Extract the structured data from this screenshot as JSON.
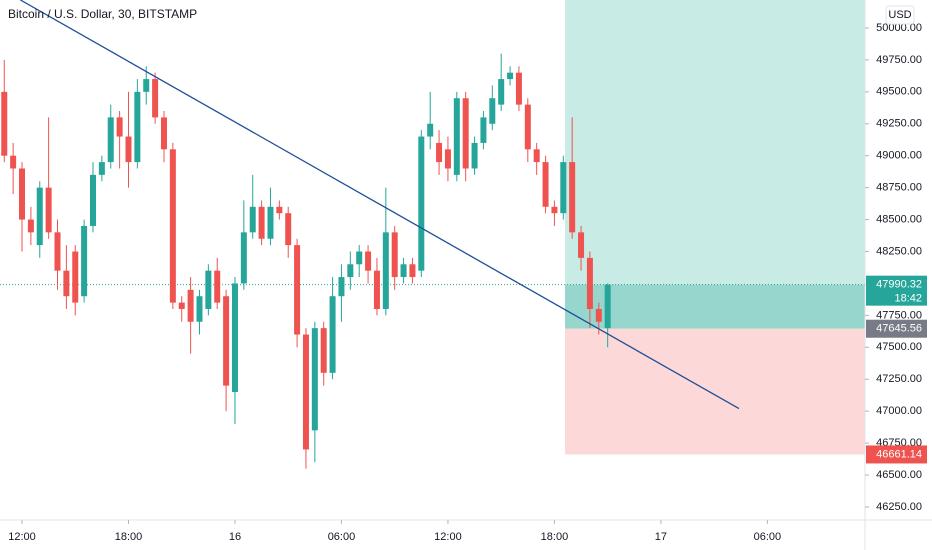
{
  "chart_data": {
    "type": "candlestick",
    "title": "Bitcoin / U.S. Dollar, 30, BITSTAMP",
    "currency": "USD",
    "countdown": "18:42",
    "up_color": "#26a69a",
    "down_color": "#ef5350",
    "xlim": [
      10.76,
      59.5
    ],
    "ylim": [
      46148,
      50219
    ],
    "xticks": [
      {
        "value": 12,
        "label": "12:00"
      },
      {
        "value": 18,
        "label": "18:00"
      },
      {
        "value": 24,
        "label": "16"
      },
      {
        "value": 30,
        "label": "06:00"
      },
      {
        "value": 36,
        "label": "12:00"
      },
      {
        "value": 42,
        "label": "18:00"
      },
      {
        "value": 48,
        "label": "17"
      },
      {
        "value": 54,
        "label": "06:00"
      }
    ],
    "yticks": [
      {
        "value": 50000,
        "label": "50000.00"
      },
      {
        "value": 49750,
        "label": "49750.00"
      },
      {
        "value": 49500,
        "label": "49500.00"
      },
      {
        "value": 49250,
        "label": "49250.00"
      },
      {
        "value": 49000,
        "label": "49000.00"
      },
      {
        "value": 48750,
        "label": "48750.00"
      },
      {
        "value": 48500,
        "label": "48500.00"
      },
      {
        "value": 48250,
        "label": "48250.00"
      },
      {
        "value": 47750,
        "label": "47750.00"
      },
      {
        "value": 47500,
        "label": "47500.00"
      },
      {
        "value": 47250,
        "label": "47250.00"
      },
      {
        "value": 47000,
        "label": "47000.00"
      },
      {
        "value": 46750,
        "label": "46750.00"
      },
      {
        "value": 46500,
        "label": "46500.00"
      },
      {
        "value": 46250,
        "label": "46250.00"
      }
    ],
    "x": [
      11,
      11.5,
      12,
      12.5,
      13,
      13.5,
      14,
      14.5,
      15,
      15.5,
      16,
      16.5,
      17,
      17.5,
      18,
      18.5,
      19,
      19.5,
      20,
      20.5,
      21,
      21.5,
      22,
      22.5,
      23,
      23.5,
      24,
      24.5,
      25,
      25.5,
      26,
      26.5,
      27,
      27.5,
      28,
      28.5,
      29,
      29.5,
      30,
      30.5,
      31,
      31.5,
      32,
      32.5,
      33,
      33.5,
      34,
      34.5,
      35,
      35.5,
      36,
      36.5,
      37,
      37.5,
      38,
      38.5,
      39,
      39.5,
      40,
      40.5,
      41,
      41.5,
      42,
      42.5,
      43,
      43.5,
      44,
      44.5,
      45
    ],
    "open": [
      49500,
      49000,
      48900,
      48500,
      48300,
      48750,
      48400,
      48100,
      48250,
      47900,
      48450,
      48850,
      48950,
      49300,
      49150,
      48950,
      49500,
      49600,
      49300,
      49050,
      47850,
      47950,
      47700,
      47800,
      48100,
      47900,
      47150,
      48000,
      48400,
      48600,
      48350,
      48600,
      48550,
      48300,
      47600,
      46850,
      47650,
      47300,
      47900,
      48050,
      48150,
      48250,
      48100,
      47800,
      48400,
      48050,
      48150,
      48100,
      49150,
      49100,
      49050,
      48850,
      49450,
      48900,
      49100,
      49250,
      49400,
      49600,
      49650,
      49400,
      49050,
      48950,
      48600,
      48550,
      48950,
      48400,
      48200,
      47800,
      47650
    ],
    "high": [
      49750,
      49100,
      48950,
      48600,
      48800,
      49300,
      48500,
      48300,
      48300,
      48500,
      48950,
      49000,
      49400,
      49350,
      49500,
      49600,
      49700,
      49650,
      49350,
      49100,
      47900,
      48050,
      47950,
      48150,
      48200,
      47950,
      48050,
      48650,
      48850,
      48650,
      48750,
      48650,
      48600,
      48350,
      47650,
      47700,
      47700,
      48050,
      48150,
      48250,
      48300,
      48300,
      48200,
      48750,
      48450,
      48200,
      48200,
      49200,
      49500,
      49200,
      49150,
      49500,
      49500,
      49150,
      49350,
      49550,
      49800,
      49700,
      49700,
      49450,
      49100,
      49000,
      48650,
      49000,
      49300,
      48450,
      48250,
      47850,
      48000
    ],
    "low": [
      48950,
      48700,
      48250,
      48300,
      48200,
      48350,
      47950,
      47800,
      47750,
      47850,
      48400,
      48800,
      48900,
      48900,
      48750,
      48900,
      49400,
      49250,
      48950,
      47800,
      47700,
      47450,
      47600,
      47750,
      47800,
      47000,
      46900,
      47950,
      48350,
      48300,
      48300,
      48500,
      48200,
      47500,
      46550,
      46600,
      47200,
      47250,
      47700,
      47950,
      48050,
      48000,
      47750,
      47750,
      47950,
      48000,
      48000,
      48050,
      49050,
      48850,
      48800,
      48800,
      48800,
      48850,
      49050,
      49200,
      49350,
      49550,
      49350,
      48950,
      48850,
      48550,
      48450,
      48500,
      48350,
      48100,
      47650,
      47600,
      47500
    ],
    "close": [
      49000,
      48900,
      48500,
      48400,
      48750,
      48400,
      48100,
      47900,
      47850,
      48450,
      48850,
      48950,
      49300,
      49150,
      48950,
      49500,
      49600,
      49300,
      49050,
      47850,
      47800,
      47700,
      47900,
      48100,
      47850,
      47200,
      48000,
      48400,
      48600,
      48350,
      48600,
      48550,
      48300,
      47600,
      46700,
      47650,
      47300,
      47900,
      48050,
      48150,
      48250,
      48100,
      47800,
      48400,
      48050,
      48150,
      48050,
      49150,
      49250,
      48950,
      48900,
      49450,
      48900,
      49100,
      49300,
      49450,
      49600,
      49650,
      49400,
      49050,
      48950,
      48600,
      48550,
      48950,
      48400,
      48200,
      47800,
      47700,
      47990.32
    ],
    "trendline": {
      "x": [
        11.9,
        52.4
      ],
      "y": [
        50220,
        47020
      ],
      "color": "#1c4f96"
    },
    "position": {
      "start": 42.6,
      "entry": 47645.56,
      "stop": 46661.14
    }
  }
}
